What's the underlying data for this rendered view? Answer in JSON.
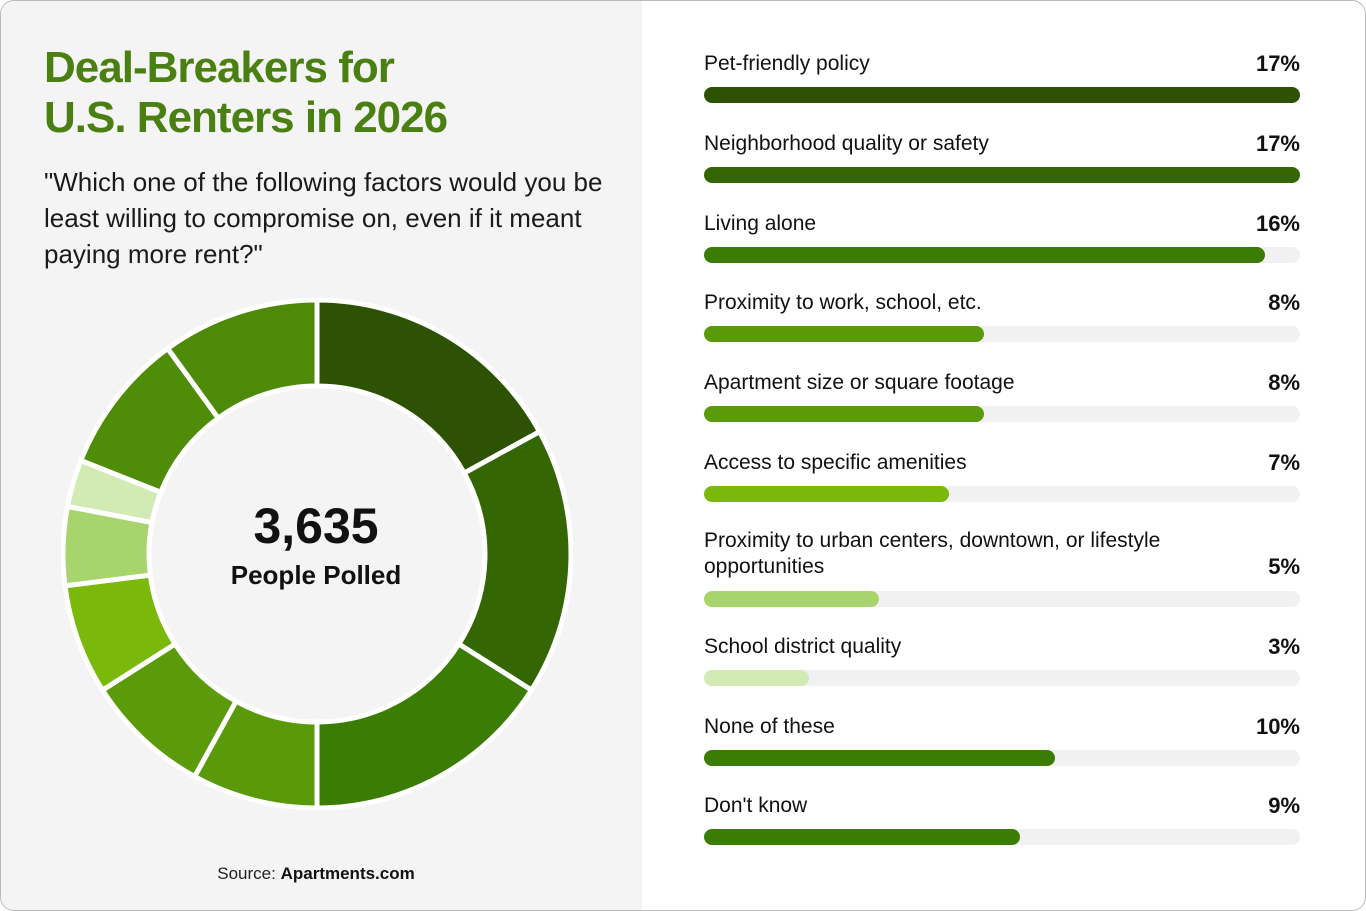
{
  "header": {
    "title_line1": "Deal-Breakers for",
    "title_line2": "U.S. Renters in 2026",
    "question": "\"Which one of the following factors would you be least willing to compromise on, even if it meant paying more rent?\""
  },
  "center": {
    "count": "3,635",
    "label": "People Polled"
  },
  "source": {
    "prefix": "Source:",
    "name": "Apartments.com"
  },
  "rows": [
    {
      "label": "Pet-friendly policy",
      "pct_label": "17%"
    },
    {
      "label": "Neighborhood quality or safety",
      "pct_label": "17%"
    },
    {
      "label": "Living alone",
      "pct_label": "16%"
    },
    {
      "label": "Proximity to work, school, etc.",
      "pct_label": "8%"
    },
    {
      "label": "Apartment size or square footage",
      "pct_label": "8%"
    },
    {
      "label": "Access to specific amenities",
      "pct_label": "7%"
    },
    {
      "label": "Proximity to urban centers, downtown, or lifestyle opportunities",
      "pct_label": "5%"
    },
    {
      "label": "School district quality",
      "pct_label": "3%"
    },
    {
      "label": "None of these",
      "pct_label": "10%"
    },
    {
      "label": "Don't know",
      "pct_label": "9%"
    }
  ],
  "colors": {
    "title": "#4a7f12",
    "track": "#f1f1f1",
    "left_bg": "#f4f4f4"
  },
  "chart_data": [
    {
      "type": "pie",
      "title": "Deal-Breakers for U.S. Renters in 2026",
      "subtitle": "3,635 People Polled",
      "categories": [
        "Pet-friendly policy",
        "Neighborhood quality or safety",
        "Living alone",
        "Proximity to work, school, etc.",
        "Apartment size or square footage",
        "Access to specific amenities",
        "Proximity to urban centers, downtown, or lifestyle opportunities",
        "School district quality",
        "Don't know",
        "None of these"
      ],
      "values": [
        17,
        17,
        16,
        8,
        8,
        7,
        5,
        3,
        9,
        10
      ],
      "colors": [
        "#2d5203",
        "#356604",
        "#3a7c04",
        "#5a9a0a",
        "#5b9a0b",
        "#7ab80a",
        "#a8d46e",
        "#d2ebb4",
        "#4f8c08",
        "#4c8a07"
      ],
      "donut": true,
      "legend": "none"
    },
    {
      "type": "bar",
      "orientation": "horizontal",
      "categories": [
        "Pet-friendly policy",
        "Neighborhood quality or safety",
        "Living alone",
        "Proximity to work, school, etc.",
        "Apartment size or square footage",
        "Access to specific amenities",
        "Proximity to urban centers, downtown, or lifestyle opportunities",
        "School district quality",
        "None of these",
        "Don't know"
      ],
      "values": [
        17,
        17,
        16,
        8,
        8,
        7,
        5,
        3,
        10,
        9
      ],
      "colors": [
        "#2d5203",
        "#356604",
        "#3a7c04",
        "#5a9a0a",
        "#5b9a0b",
        "#7ab80a",
        "#a8d46e",
        "#d2ebb4",
        "#3a7c04",
        "#3a7c04"
      ],
      "xlim": [
        0,
        17
      ],
      "grid": false,
      "xlabel": "",
      "ylabel": ""
    }
  ]
}
